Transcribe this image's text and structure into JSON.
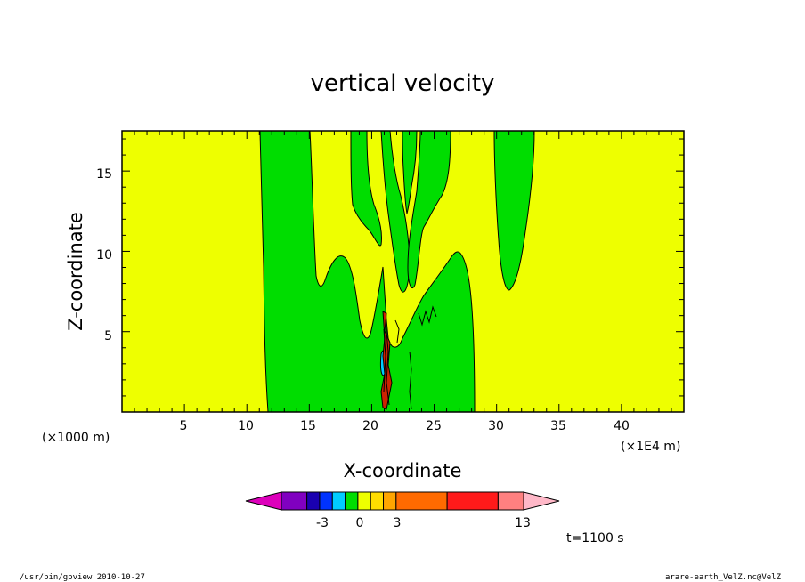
{
  "chart_data": {
    "type": "heatmap",
    "title": "vertical velocity",
    "xlabel": "X-coordinate",
    "ylabel": "Z-coordinate",
    "x_unit_left": "(×1000 m)",
    "x_unit_right": "(×1E4 m)",
    "xlim": [
      0,
      45
    ],
    "ylim": [
      0,
      17.5
    ],
    "x_ticks": [
      "5",
      "10",
      "15",
      "20",
      "25",
      "30",
      "35",
      "40"
    ],
    "y_ticks": [
      "5",
      "10",
      "15"
    ],
    "colors": {
      "background_field": "#eeff00",
      "positive_small": "#00dd00",
      "updraft_core": "#00ddff",
      "strong": "#000000"
    },
    "colorbar": {
      "colors": [
        "#dd00bb",
        "#8000c0",
        "#1a00b0",
        "#0033ff",
        "#00ccff",
        "#00dd00",
        "#eeff00",
        "#ffdd00",
        "#ffa500",
        "#ff6a00",
        "#ff1a1a",
        "#ff8080",
        "#ffb8c8"
      ],
      "labels": [
        "-3",
        "0",
        "3",
        "13"
      ]
    },
    "time_label": "t=1100 s",
    "footer_left": "/usr/bin/gpview   2010-10-27",
    "footer_right": "arare-earth_VelZ.nc@VelZ"
  }
}
